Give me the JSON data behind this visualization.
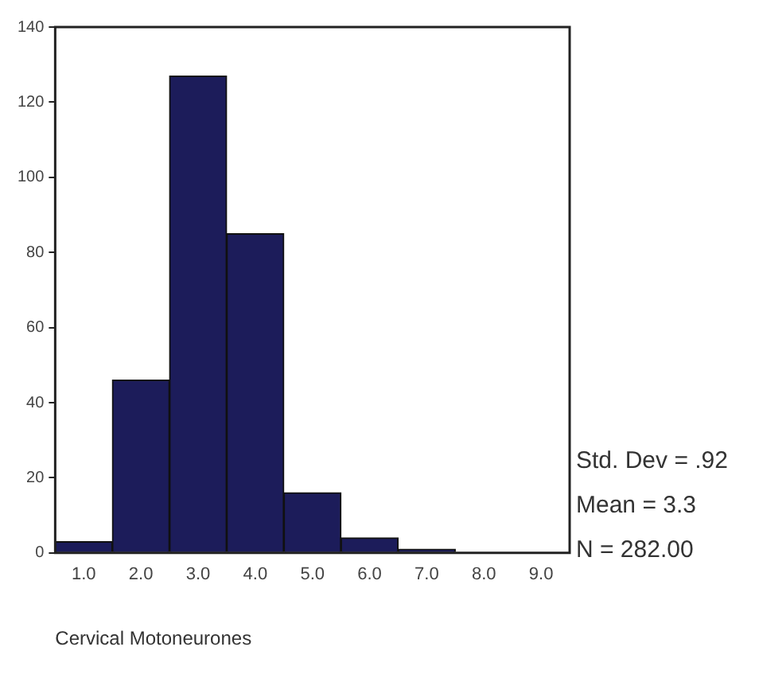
{
  "chart_data": {
    "type": "histogram",
    "xlabel": "Cervical Motoneurones",
    "bins": [
      0.5,
      1.5,
      2.5,
      3.5,
      4.5,
      5.5,
      6.5,
      7.5,
      8.5,
      9.5
    ],
    "values": [
      3,
      46,
      127,
      85,
      16,
      4,
      1,
      0,
      0
    ],
    "color": "#1c1c5a",
    "xlim": [
      0.5,
      9.5
    ],
    "xticks": [
      {
        "value": 1,
        "label": "1.0"
      },
      {
        "value": 2,
        "label": "2.0"
      },
      {
        "value": 3,
        "label": "3.0"
      },
      {
        "value": 4,
        "label": "4.0"
      },
      {
        "value": 5,
        "label": "5.0"
      },
      {
        "value": 6,
        "label": "6.0"
      },
      {
        "value": 7,
        "label": "7.0"
      },
      {
        "value": 8,
        "label": "8.0"
      },
      {
        "value": 9,
        "label": "9.0"
      }
    ],
    "ylim": [
      0,
      140
    ],
    "yticks": [
      0,
      20,
      40,
      60,
      80,
      100,
      120,
      140
    ],
    "grid": false,
    "legend": false,
    "annotations": [
      "Std. Dev = .92",
      "Mean = 3.3",
      "N = 282.00"
    ]
  }
}
